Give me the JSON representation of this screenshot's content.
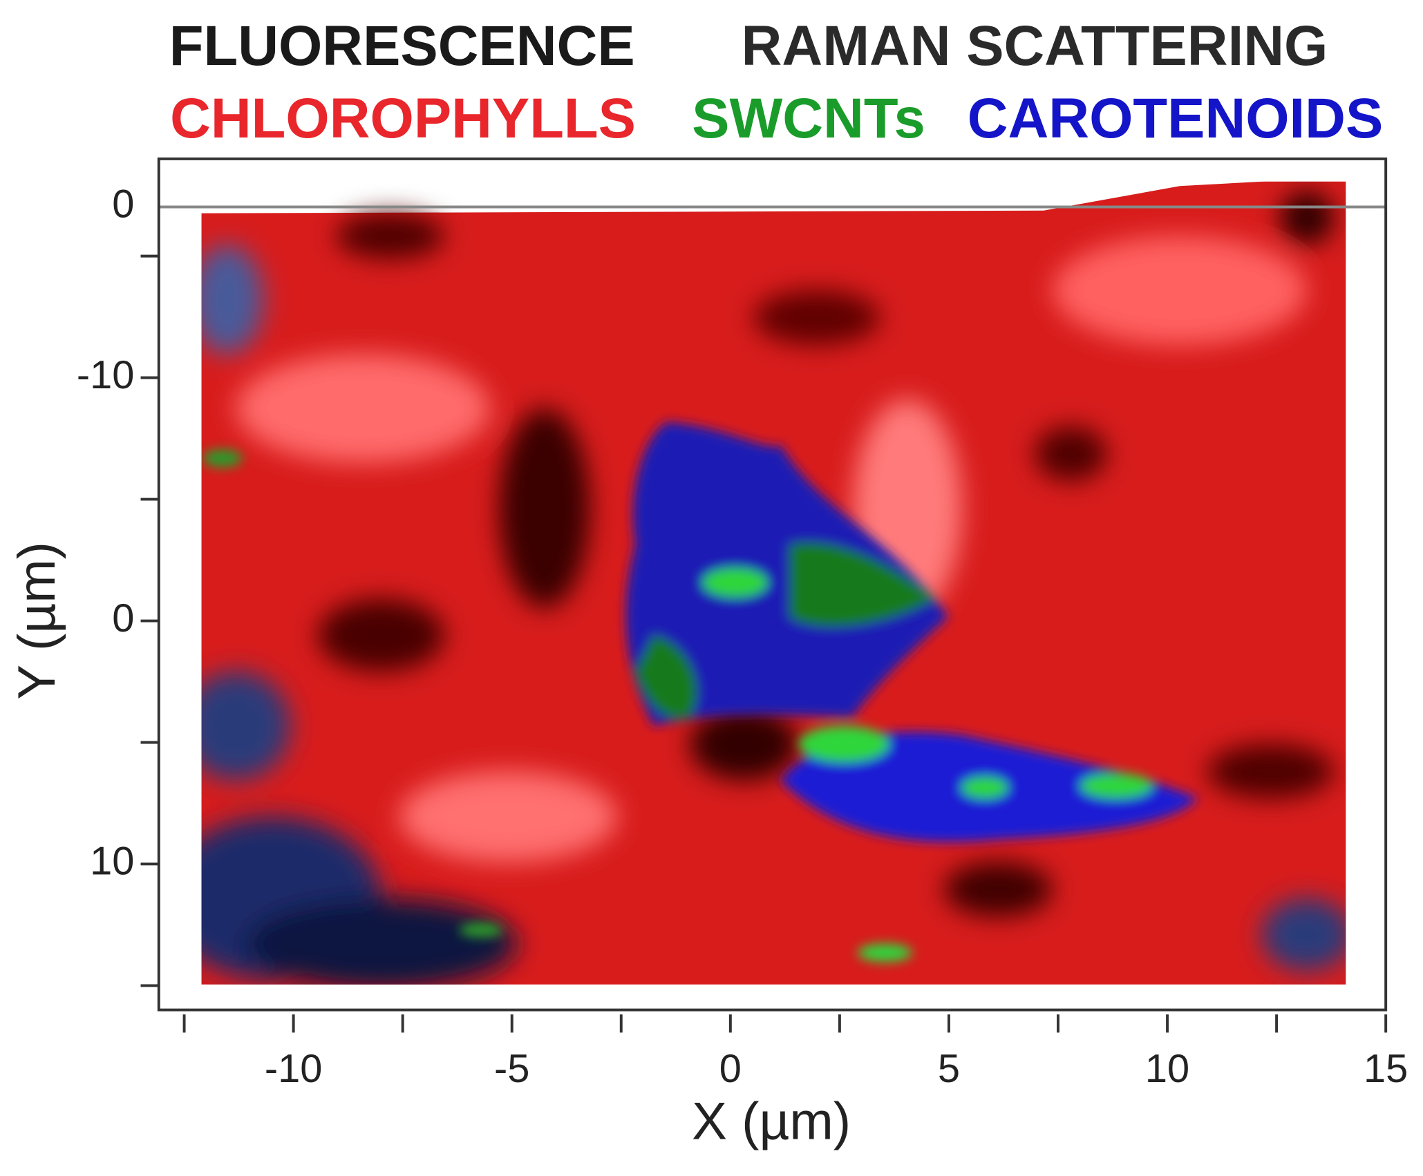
{
  "chart_data": {
    "type": "map",
    "title": "FLUORESCENCE",
    "subtitle": "RAMAN SCATTERING",
    "series": [
      {
        "name": "CHLOROPHYLLS",
        "color": "#e8262b"
      },
      {
        "name": "SWCNTs",
        "color": "#1a9c2a"
      },
      {
        "name": "CAROTENOIDS",
        "color": "#1414c8"
      }
    ],
    "xlabel": "X (µm)",
    "ylabel": "Y (µm)",
    "xlim": [
      -12.5,
      15
    ],
    "xticks": [
      -10,
      -5,
      0,
      5,
      10,
      15
    ],
    "xminorticks": [
      -12.5,
      -7.5,
      -2.5,
      2.5,
      7.5,
      12.5
    ],
    "ylim": [
      -19,
      16
    ],
    "yticks": [
      -10,
      0,
      10
    ],
    "yminorticks": [
      -15,
      -5,
      5,
      15
    ],
    "annotations": [
      "0"
    ]
  }
}
